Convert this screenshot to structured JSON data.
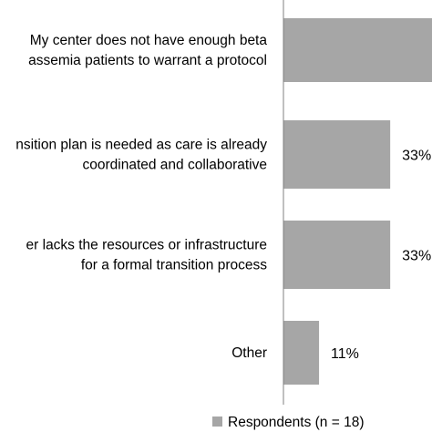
{
  "chart_data": {
    "type": "bar",
    "orientation": "horizontal",
    "categories": [
      [
        "My center does not have enough beta",
        "assemia patients to warrant a protocol"
      ],
      [
        "nsition plan is needed as care is already",
        "coordinated and collaborative"
      ],
      [
        "er lacks the resources or infrastructure",
        "for a formal transition process"
      ],
      [
        "Other"
      ]
    ],
    "values": [
      null,
      33,
      33,
      11
    ],
    "value_labels": [
      "",
      "33%",
      "33%",
      "11%"
    ],
    "series": [
      {
        "name": "Respondents (n = 18)",
        "values": [
          null,
          33,
          33,
          11
        ]
      }
    ],
    "legend": {
      "position": "bottom-right"
    },
    "colors": {
      "bar": "#a6a6a6",
      "axis": "#808080"
    }
  }
}
